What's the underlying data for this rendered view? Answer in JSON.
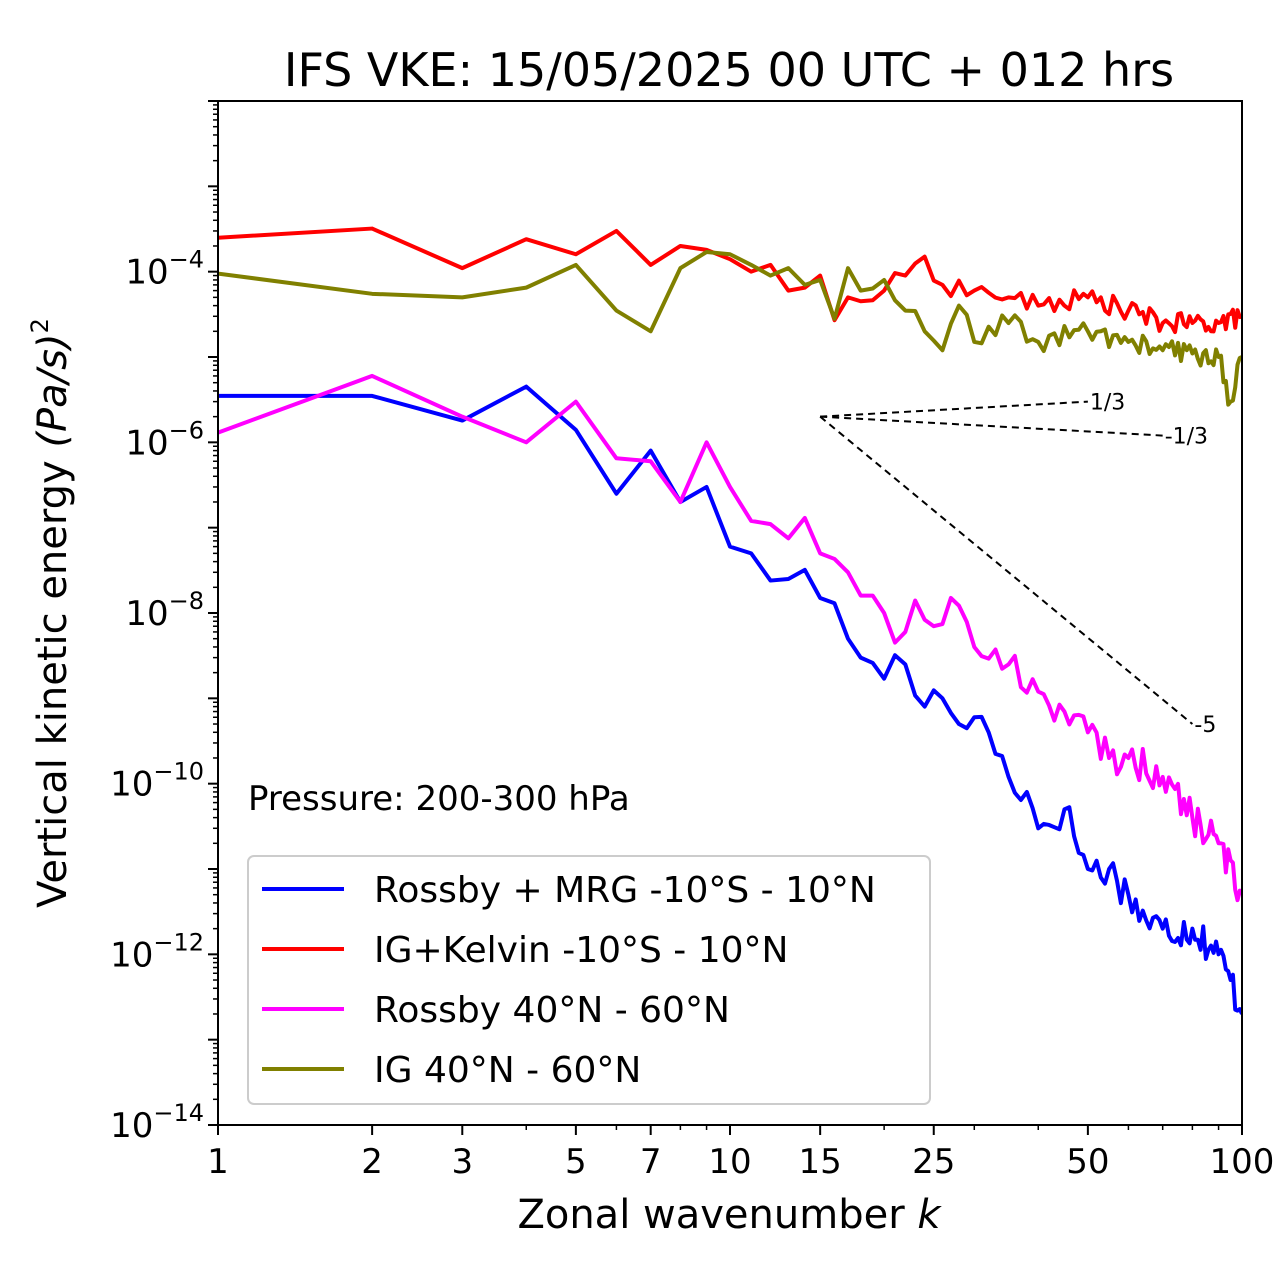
{
  "chart_data": {
    "type": "line",
    "title": "IFS VKE: 15/05/2025 00 UTC + 012 hrs",
    "xlabel": "Zonal wavenumber",
    "xlabel_var": "k",
    "ylabel": "Vertical kinetic energy",
    "ylabel_unit": "(Pa/s)",
    "ylabel_exp": "2",
    "x_scale": "log",
    "y_scale": "log",
    "xlim": [
      1,
      100
    ],
    "ylim": [
      1e-14,
      0.01
    ],
    "x_ticks": [
      1,
      2,
      3,
      5,
      7,
      10,
      15,
      25,
      50,
      100
    ],
    "x_tick_labels": [
      "1",
      "2",
      "3",
      "5",
      "7",
      "10",
      "15",
      "25",
      "50",
      "100"
    ],
    "y_tick_exponents": [
      -4,
      -6,
      -8,
      -10,
      -12,
      -14
    ],
    "y_tick_base": "10",
    "annotation": "Pressure: 200-300 hPa",
    "legend_position": "lower-left",
    "grid": false,
    "slope_guides": [
      {
        "label": "1/3",
        "x0": 15,
        "y0": 2e-06,
        "x1": 50,
        "y1": 3e-06
      },
      {
        "label": "-1/3",
        "x0": 15,
        "y0": 2e-06,
        "x1": 70,
        "y1": 1.2e-06
      },
      {
        "label": "-5",
        "x0": 15,
        "y0": 2e-06,
        "x1": 80,
        "y1": 5e-10
      }
    ],
    "series": [
      {
        "name": "Rossby + MRG -10°S - 10°N",
        "color": "#0000ff",
        "anchors": [
          [
            1,
            3.5e-06
          ],
          [
            2,
            3.5e-06
          ],
          [
            3,
            1.8e-06
          ],
          [
            4,
            4.5e-06
          ],
          [
            5,
            1.4e-06
          ],
          [
            6,
            2.5e-07
          ],
          [
            7,
            8e-07
          ],
          [
            8,
            2e-07
          ],
          [
            9,
            3e-07
          ],
          [
            10,
            6e-08
          ],
          [
            11,
            5e-08
          ],
          [
            12,
            2.4e-08
          ],
          [
            13,
            2.5e-08
          ],
          [
            14,
            3.2e-08
          ],
          [
            15,
            1.5e-08
          ],
          [
            16,
            1.3e-08
          ],
          [
            17,
            5e-09
          ],
          [
            18,
            3e-09
          ],
          [
            19,
            2.6e-09
          ],
          [
            20,
            1.7e-09
          ],
          [
            21,
            3.2e-09
          ],
          [
            22,
            2.5e-09
          ],
          [
            24,
            8e-10
          ],
          [
            26,
            1e-09
          ],
          [
            28,
            5e-10
          ],
          [
            30,
            6e-10
          ],
          [
            32,
            4e-10
          ],
          [
            35,
            1.2e-10
          ],
          [
            38,
            8e-11
          ],
          [
            40,
            3e-11
          ],
          [
            45,
            5e-11
          ],
          [
            50,
            1e-11
          ],
          [
            55,
            1e-11
          ],
          [
            60,
            5e-12
          ],
          [
            65,
            2.5e-12
          ],
          [
            70,
            2e-12
          ],
          [
            80,
            2e-12
          ],
          [
            90,
            1e-12
          ],
          [
            95,
            5e-13
          ],
          [
            100,
            2e-13
          ]
        ],
        "noise": 0.22
      },
      {
        "name": "IG+Kelvin -10°S - 10°N",
        "color": "#ff0000",
        "anchors": [
          [
            1,
            0.00025
          ],
          [
            2,
            0.00032
          ],
          [
            3,
            0.00011
          ],
          [
            4,
            0.00024
          ],
          [
            5,
            0.00016
          ],
          [
            6,
            0.0003
          ],
          [
            7,
            0.00012
          ],
          [
            8,
            0.0002
          ],
          [
            9,
            0.00018
          ],
          [
            10,
            0.00014
          ],
          [
            11,
            0.0001
          ],
          [
            12,
            0.00012
          ],
          [
            13,
            6e-05
          ],
          [
            14,
            6.5e-05
          ],
          [
            15,
            9e-05
          ],
          [
            16,
            2.7e-05
          ],
          [
            17,
            5e-05
          ],
          [
            18,
            4.5e-05
          ],
          [
            20,
            6e-05
          ],
          [
            22,
            9e-05
          ],
          [
            24,
            0.00015
          ],
          [
            26,
            7e-05
          ],
          [
            30,
            6e-05
          ],
          [
            35,
            5e-05
          ],
          [
            40,
            4e-05
          ],
          [
            50,
            5e-05
          ],
          [
            60,
            3.5e-05
          ],
          [
            70,
            2.5e-05
          ],
          [
            80,
            2.5e-05
          ],
          [
            90,
            2.5e-05
          ],
          [
            100,
            3e-05
          ]
        ],
        "noise": 0.12
      },
      {
        "name": "Rossby 40°N - 60°N",
        "color": "#ff00ff",
        "anchors": [
          [
            1,
            1.3e-06
          ],
          [
            2,
            6e-06
          ],
          [
            3,
            2e-06
          ],
          [
            4,
            1e-06
          ],
          [
            5,
            3e-06
          ],
          [
            6,
            6.5e-07
          ],
          [
            7,
            6e-07
          ],
          [
            8,
            2e-07
          ],
          [
            9,
            1e-06
          ],
          [
            10,
            3e-07
          ],
          [
            11,
            1.2e-07
          ],
          [
            12,
            1.1e-07
          ],
          [
            13,
            7.5e-08
          ],
          [
            14,
            1.3e-07
          ],
          [
            15,
            5e-08
          ],
          [
            16,
            4.3e-08
          ],
          [
            17,
            3e-08
          ],
          [
            18,
            1.6e-08
          ],
          [
            19,
            1.6e-08
          ],
          [
            20,
            1e-08
          ],
          [
            21,
            4.5e-09
          ],
          [
            22,
            6e-09
          ],
          [
            23,
            1.4e-08
          ],
          [
            25,
            7e-09
          ],
          [
            27,
            1.5e-08
          ],
          [
            30,
            4e-09
          ],
          [
            35,
            2.5e-09
          ],
          [
            40,
            1.2e-09
          ],
          [
            45,
            7e-10
          ],
          [
            50,
            4e-10
          ],
          [
            55,
            2e-10
          ],
          [
            60,
            2e-10
          ],
          [
            70,
            1.2e-10
          ],
          [
            80,
            4e-11
          ],
          [
            90,
            2e-11
          ],
          [
            100,
            5e-12
          ]
        ],
        "noise": 0.2
      },
      {
        "name": "IG 40°N - 60°N",
        "color": "#808000",
        "anchors": [
          [
            1,
            9.5e-05
          ],
          [
            2,
            5.5e-05
          ],
          [
            3,
            5e-05
          ],
          [
            4,
            6.5e-05
          ],
          [
            5,
            0.00012
          ],
          [
            6,
            3.5e-05
          ],
          [
            7,
            2e-05
          ],
          [
            8,
            0.00011
          ],
          [
            9,
            0.00017
          ],
          [
            10,
            0.00016
          ],
          [
            11,
            0.00012
          ],
          [
            12,
            9e-05
          ],
          [
            13,
            0.00011
          ],
          [
            14,
            7e-05
          ],
          [
            15,
            8e-05
          ],
          [
            16,
            2.8e-05
          ],
          [
            17,
            0.00011
          ],
          [
            18,
            6e-05
          ],
          [
            20,
            8e-05
          ],
          [
            22,
            3.5e-05
          ],
          [
            24,
            2e-05
          ],
          [
            26,
            1.2e-05
          ],
          [
            28,
            4e-05
          ],
          [
            30,
            1.5e-05
          ],
          [
            35,
            2.5e-05
          ],
          [
            40,
            1.5e-05
          ],
          [
            50,
            2e-05
          ],
          [
            60,
            1.5e-05
          ],
          [
            70,
            1.2e-05
          ],
          [
            80,
            1.1e-05
          ],
          [
            90,
            1e-05
          ],
          [
            95,
            3e-06
          ],
          [
            100,
            1e-05
          ]
        ],
        "noise": 0.14
      }
    ]
  }
}
